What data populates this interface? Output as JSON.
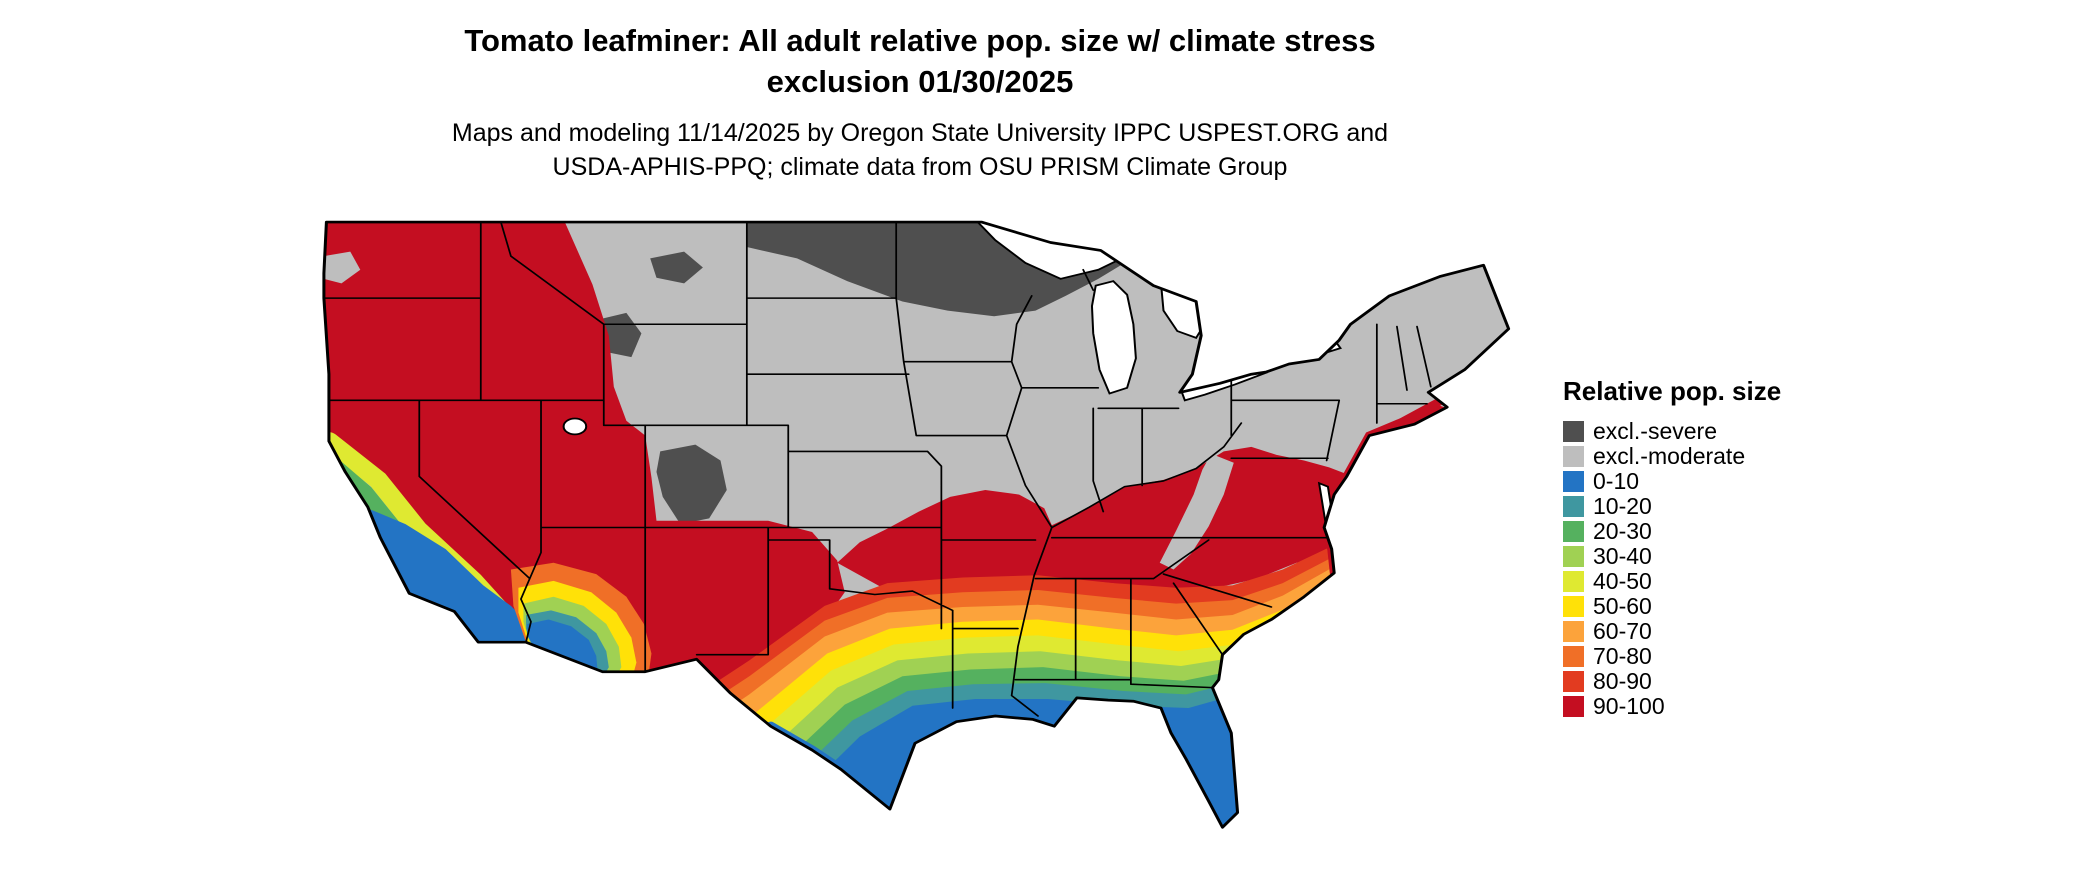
{
  "title": {
    "line1": "Tomato leafminer: All adult relative pop. size w/ climate stress",
    "line2": "exclusion 01/30/2025"
  },
  "subtitle": {
    "line1": "Maps and modeling 11/14/2025 by Oregon State University IPPC USPEST.ORG and",
    "line2": "USDA-APHIS-PPQ; climate data from OSU PRISM Climate Group"
  },
  "legend": {
    "title": "Relative pop. size",
    "items": [
      {
        "label": "excl.-severe",
        "color": "#4f4f4f"
      },
      {
        "label": "excl.-moderate",
        "color": "#bebebe"
      },
      {
        "label": "0-10",
        "color": "#2374c4"
      },
      {
        "label": "10-20",
        "color": "#3f97a0"
      },
      {
        "label": "20-30",
        "color": "#55b15f"
      },
      {
        "label": "30-40",
        "color": "#a0d153"
      },
      {
        "label": "40-50",
        "color": "#dfe931"
      },
      {
        "label": "50-60",
        "color": "#ffe108"
      },
      {
        "label": "60-70",
        "color": "#fca33b"
      },
      {
        "label": "70-80",
        "color": "#f06f27"
      },
      {
        "label": "80-90",
        "color": "#e23b20"
      },
      {
        "label": "90-100",
        "color": "#c40e21"
      }
    ]
  },
  "map": {
    "water": "#ffffff",
    "line": "#000000",
    "background": "#ffffff"
  }
}
